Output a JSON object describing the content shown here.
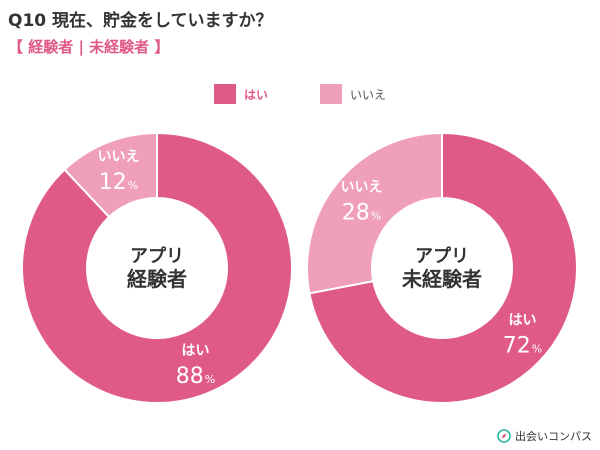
{
  "header": {
    "title": "Q10 現在、貯金をしていますか？",
    "subtitle": "【 経験者 | 未経験者 】"
  },
  "legend": [
    {
      "label": "はい",
      "color": "#e05a86"
    },
    {
      "label": "いいえ",
      "color": "#ef9fb7"
    }
  ],
  "chart_data": [
    {
      "type": "pie",
      "center_label": [
        "アプリ",
        "経験者"
      ],
      "slices": [
        {
          "label": "はい",
          "value": 88,
          "color": "#e05a86"
        },
        {
          "label": "いいえ",
          "value": 12,
          "color": "#ef9fb7"
        }
      ],
      "unit": "%"
    },
    {
      "type": "pie",
      "center_label": [
        "アプリ",
        "未経験者"
      ],
      "slices": [
        {
          "label": "はい",
          "value": 72,
          "color": "#e05a86"
        },
        {
          "label": "いいえ",
          "value": 28,
          "color": "#ef9fb7"
        }
      ],
      "unit": "%"
    }
  ],
  "footer": {
    "brand": "出会いコンパス",
    "brand_icon": "compass-icon"
  }
}
